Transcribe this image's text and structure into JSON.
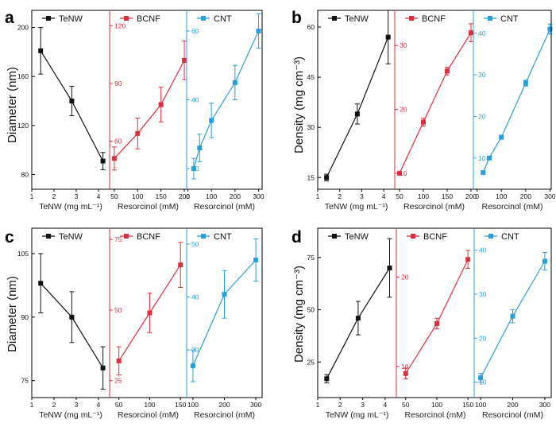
{
  "colors": {
    "TeNW": "#111111",
    "BCNF": "#d9303f",
    "CNT": "#2a9fd6"
  },
  "chart_data": [
    {
      "panel": "a",
      "type": "line",
      "ylabel": "Diameter (nm)",
      "subplots": [
        {
          "key": "TeNW",
          "legend": "TeNW",
          "xlabel": "TeNW (mg mL⁻¹)",
          "xlim": [
            1,
            4.5
          ],
          "xticks": [
            1,
            2,
            3,
            4
          ],
          "ylim": [
            68,
            214
          ],
          "yticks": [
            80,
            120,
            160,
            200
          ],
          "x": [
            1.4,
            2.8,
            4.2
          ],
          "y": [
            181,
            140,
            91
          ],
          "err": [
            19,
            12,
            7
          ]
        },
        {
          "key": "BCNF",
          "legend": "BCNF",
          "xlabel": "Resorcinol (mM)",
          "xlim": [
            40,
            205
          ],
          "xticks": [
            50,
            100,
            150,
            200
          ],
          "ylim": [
            35,
            128
          ],
          "yticks": [
            60,
            90,
            120
          ],
          "x": [
            50,
            100,
            150,
            200
          ],
          "y": [
            51,
            64,
            79,
            102
          ],
          "err": [
            6,
            8,
            9,
            10
          ]
        },
        {
          "key": "CNT",
          "legend": "CNT",
          "xlabel": "Resorcinol (mM)",
          "xlim": [
            -5,
            315
          ],
          "xticks": [
            0,
            100,
            200,
            300
          ],
          "ylim": [
            14,
            66
          ],
          "yticks": [
            20,
            40,
            60
          ],
          "x": [
            25,
            50,
            100,
            200,
            300
          ],
          "y": [
            20,
            26,
            34,
            45,
            60
          ],
          "err": [
            3,
            4,
            5,
            5,
            5
          ]
        }
      ]
    },
    {
      "panel": "b",
      "type": "line",
      "ylabel": "Density (mg cm⁻³)",
      "subplots": [
        {
          "key": "TeNW",
          "legend": "TeNW",
          "xlabel": "TeNW (mg mL⁻¹)",
          "xlim": [
            1,
            4.5
          ],
          "xticks": [
            1,
            2,
            3,
            4
          ],
          "ylim": [
            11.5,
            65
          ],
          "yticks": [
            15,
            30,
            45,
            60
          ],
          "x": [
            1.4,
            2.8,
            4.2
          ],
          "y": [
            15,
            34,
            57
          ],
          "err": [
            1,
            3,
            8
          ]
        },
        {
          "key": "BCNF",
          "legend": "BCNF",
          "xlabel": "Resorcinol (mM)",
          "xlim": [
            40,
            205
          ],
          "xticks": [
            50,
            100,
            150,
            200
          ],
          "ylim": [
            7.5,
            35.5
          ],
          "yticks": [
            10,
            20,
            30
          ],
          "x": [
            50,
            100,
            150,
            200
          ],
          "y": [
            10,
            18,
            26,
            32
          ],
          "err": [
            0.2,
            0.6,
            0.6,
            1.4
          ]
        },
        {
          "key": "CNT",
          "legend": "CNT",
          "xlabel": "Resorcinol (mM)",
          "xlim": [
            -15,
            305
          ],
          "xticks": [
            0,
            100,
            200,
            300
          ],
          "ylim": [
            2.5,
            45.5
          ],
          "yticks": [
            10,
            20,
            30,
            40
          ],
          "x": [
            25,
            50,
            100,
            200,
            300
          ],
          "y": [
            6.5,
            10,
            15,
            28,
            41
          ],
          "err": [
            0.2,
            0.3,
            0.4,
            0.7,
            1.2
          ]
        }
      ]
    },
    {
      "panel": "c",
      "type": "line",
      "ylabel": "Diameter (nm)",
      "subplots": [
        {
          "key": "TeNW",
          "legend": "TeNW",
          "xlabel": "TeNW (mg mL⁻¹)",
          "xlim": [
            1,
            4.5
          ],
          "xticks": [
            1,
            2,
            3,
            4
          ],
          "ylim": [
            71,
            111
          ],
          "yticks": [
            75,
            90,
            105
          ],
          "x": [
            1.4,
            2.8,
            4.2
          ],
          "y": [
            98,
            90,
            78
          ],
          "err": [
            7,
            6,
            5
          ]
        },
        {
          "key": "BCNF",
          "legend": "BCNF",
          "xlabel": "Resorcinol (mM)",
          "xlim": [
            35,
            160
          ],
          "xticks": [
            50,
            100,
            150
          ],
          "ylim": [
            19,
            79
          ],
          "yticks": [
            25,
            50,
            75
          ],
          "x": [
            50,
            100,
            150
          ],
          "y": [
            32,
            49,
            66
          ],
          "err": [
            5,
            7,
            8
          ]
        },
        {
          "key": "CNT",
          "legend": "CNT",
          "xlabel": "Resorcinol (mM)",
          "xlim": [
            80,
            320
          ],
          "xticks": [
            100,
            200,
            300
          ],
          "ylim": [
            21,
            53
          ],
          "yticks": [
            30,
            40,
            50
          ],
          "x": [
            100,
            200,
            300
          ],
          "y": [
            27,
            40.5,
            47
          ],
          "err": [
            3,
            4.5,
            4
          ]
        }
      ]
    },
    {
      "panel": "d",
      "type": "line",
      "ylabel": "Density (mg cm⁻³)",
      "subplots": [
        {
          "key": "TeNW",
          "legend": "TeNW",
          "xlabel": "TeNW (mg mL⁻¹)",
          "xlim": [
            1,
            4.5
          ],
          "xticks": [
            1,
            2,
            3,
            4
          ],
          "ylim": [
            8,
            89
          ],
          "yticks": [
            25,
            50,
            75
          ],
          "x": [
            1.4,
            2.8,
            4.2
          ],
          "y": [
            17,
            46,
            70
          ],
          "err": [
            2,
            8,
            14
          ]
        },
        {
          "key": "BCNF",
          "legend": "BCNF",
          "xlabel": "Resorcinol (mM)",
          "xlim": [
            35,
            160
          ],
          "xticks": [
            50,
            100,
            150
          ],
          "ylim": [
            6.5,
            25.5
          ],
          "yticks": [
            10,
            20
          ],
          "x": [
            50,
            100,
            150
          ],
          "y": [
            9.2,
            14.8,
            22
          ],
          "err": [
            0.6,
            0.6,
            1
          ]
        },
        {
          "key": "CNT",
          "legend": "CNT",
          "xlabel": "Resorcinol (mM)",
          "xlim": [
            80,
            320
          ],
          "xticks": [
            100,
            200,
            300
          ],
          "ylim": [
            6.5,
            45
          ],
          "yticks": [
            10,
            20,
            30,
            40
          ],
          "x": [
            100,
            200,
            300
          ],
          "y": [
            11,
            25,
            37.5
          ],
          "err": [
            1,
            1.5,
            2
          ]
        }
      ]
    }
  ]
}
